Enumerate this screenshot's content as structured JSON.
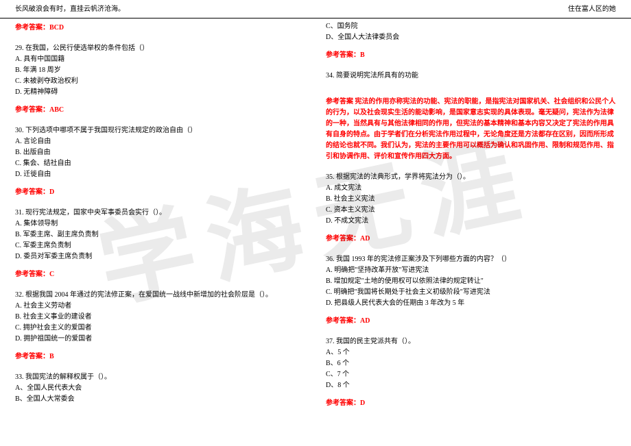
{
  "header": {
    "left": "长风破浪会有时，直挂云帆济沧海。",
    "right": "住在富人区的她"
  },
  "watermark": "学海无涯",
  "left_column": [
    {
      "lines": [],
      "answer": "参考答案：BCD"
    },
    {
      "lines": [
        "29. 在我国，公民行使选举权的条件包括（）",
        "A. 具有中国国籍",
        "B. 年满 18 周岁",
        "C. 未被剥夺政治权利",
        "D. 无精神障碍"
      ],
      "answer": "参考答案：ABC"
    },
    {
      "lines": [
        "30. 下列选项中哪项不属于我国现行宪法规定的政治自由（）",
        "A. 言论自由",
        "B. 出版自由",
        "C. 集会、结社自由",
        "D. 迁徙自由"
      ],
      "answer": "参考答案：D"
    },
    {
      "lines": [
        "31. 现行宪法规定，国家中央军事委员会实行（）。",
        "A. 集体领导制",
        "B. 军委主席、副主席负责制",
        "C. 军委主席负责制",
        "D. 委员对军委主席负责制"
      ],
      "answer": "参考答案：C"
    },
    {
      "lines": [
        "32. 根据我国 2004 年通过的宪法修正案，在爱国统一战线中新增加的社会阶层是（）。",
        "A. 社会主义劳动者",
        "B. 社会主义事业的建设者",
        "C. 拥护社会主义的爱国者",
        "D. 拥护祖国统一的爱国者"
      ],
      "answer": "参考答案：B"
    },
    {
      "lines": [
        "33. 我国宪法的解释权属于（）。",
        "A、全国人民代表大会",
        "B、全国人大常委会"
      ]
    }
  ],
  "right_column": [
    {
      "lines": [
        "C、国务院",
        "D、全国人大法律委员会"
      ],
      "answer": "参考答案：B"
    },
    {
      "lines": [
        "34. 简要说明宪法所具有的功能"
      ],
      "answer_long": "参考答案 宪法的作用亦称宪法的功能、宪法的职能，是指宪法对国家机关、社会组织和公民个人的行为，以及社会现实生活的能动影响，是国家意志实现的具体表现。毫无疑问，宪法作为法律的一种，当然具有与其他法律相同的作用，但宪法的基本精神和基本内容又决定了宪法的作用具有自身的特点。由于学者们在分析宪法作用过程中，无论角度还是方法都存在区别，因而所形成的结论也就不同。我们认为，宪法的主要作用可以概括为确认和巩固作用、限制和规范作用、指引和协调作用、评价和宣传作用四大方面。"
    },
    {
      "lines": [
        "35. 根据宪法的法典形式，学界将宪法分为（）。",
        "A. 成文宪法",
        "B. 社会主义宪法",
        "C. 资本主义宪法",
        "D. 不成文宪法"
      ],
      "answer": "参考答案：AD"
    },
    {
      "lines": [
        "36. 我国 1993 年的宪法修正案涉及下列哪些方面的内容？（）",
        "A. 明确把\"坚持改革开放\"写进宪法",
        "B. 增加规定\"土地的使用权可以依照法律的规定转让\"",
        "C. 明确把\"我国将长期处于社会主义初级阶段\"写进宪法",
        "D. 把县级人民代表大会的任期由 3 年改为 5 年"
      ],
      "answer": "参考答案：AD"
    },
    {
      "lines": [
        "37. 我国的民主党派共有（）。",
        "A、5 个",
        "B、6 个",
        "C、7 个",
        "D、8 个"
      ],
      "answer": "参考答案：D"
    }
  ]
}
